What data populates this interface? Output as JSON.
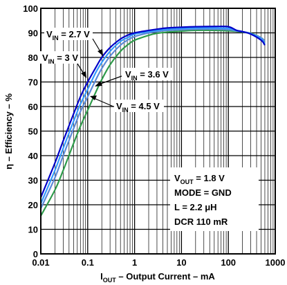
{
  "chart_data": {
    "type": "line",
    "x_scale": "log",
    "xlim": [
      0.01,
      1000
    ],
    "ylim": [
      0,
      100
    ],
    "x_ticks": [
      "0.01",
      "0.1",
      "1",
      "10",
      "100",
      "1000"
    ],
    "y_ticks": [
      "0",
      "10",
      "20",
      "30",
      "40",
      "50",
      "60",
      "70",
      "80",
      "90",
      "100"
    ],
    "xlabel": {
      "main": "I",
      "sub": "OUT",
      "rest": " – Output Current – mA"
    },
    "ylabel": "η – Efficiency – %",
    "grid": true,
    "series": [
      {
        "name": "V_IN = 2.7 V",
        "label_main": "V",
        "label_sub": "IN",
        "label_rest": " = 2.7 V",
        "color": "#0000c8",
        "x": [
          0.01,
          0.02,
          0.03,
          0.05,
          0.07,
          0.1,
          0.15,
          0.2,
          0.3,
          0.5,
          0.7,
          1,
          2,
          3,
          5,
          10,
          20,
          50,
          100,
          150,
          200,
          300,
          500,
          600
        ],
        "y": [
          23,
          37,
          46,
          57,
          64,
          70,
          76,
          80,
          84,
          87.5,
          89,
          90,
          91,
          91.5,
          92,
          92.3,
          92.5,
          92.6,
          92.5,
          91,
          90.5,
          89.5,
          87,
          85
        ]
      },
      {
        "name": "V_IN = 3 V",
        "label_main": "V",
        "label_sub": "IN",
        "label_rest": " = 3 V",
        "color": "#3399ff",
        "x": [
          0.01,
          0.02,
          0.03,
          0.05,
          0.07,
          0.1,
          0.15,
          0.2,
          0.3,
          0.5,
          0.7,
          1,
          2,
          3,
          5,
          10,
          20,
          50,
          100,
          150,
          200,
          300,
          500,
          600
        ],
        "y": [
          20.5,
          34,
          43,
          54,
          61,
          67,
          74,
          78,
          82.5,
          86.5,
          88,
          89.5,
          90.5,
          91,
          91.5,
          91.8,
          92,
          92,
          91.8,
          91,
          90.5,
          89.7,
          87.5,
          85.5
        ]
      },
      {
        "name": "V_IN = 3.6 V",
        "label_main": "V",
        "label_sub": "IN",
        "label_rest": " = 3.6 V",
        "color": "#5c8ad8",
        "x": [
          0.01,
          0.02,
          0.03,
          0.05,
          0.07,
          0.1,
          0.15,
          0.2,
          0.3,
          0.5,
          0.7,
          1,
          2,
          3,
          5,
          10,
          20,
          50,
          100,
          150,
          200,
          300,
          500,
          600
        ],
        "y": [
          18.5,
          31,
          40,
          51,
          58,
          64,
          71,
          75.5,
          80.5,
          85,
          87,
          88.5,
          90,
          90.5,
          91,
          91.3,
          91.5,
          91.5,
          91.3,
          90.8,
          90.4,
          89.7,
          88,
          86.5
        ]
      },
      {
        "name": "V_IN = 4.5 V",
        "label_main": "V",
        "label_sub": "IN",
        "label_rest": " = 4.5 V",
        "color": "#2e9b4a",
        "x": [
          0.01,
          0.02,
          0.03,
          0.05,
          0.07,
          0.1,
          0.15,
          0.2,
          0.3,
          0.5,
          0.7,
          1,
          2,
          3,
          5,
          10,
          20,
          50,
          100,
          150,
          200,
          300,
          500,
          600
        ],
        "y": [
          15.5,
          26,
          34,
          45,
          52,
          58.5,
          66,
          71,
          77,
          82.5,
          85,
          87,
          89,
          89.8,
          90.3,
          90.7,
          91,
          91,
          90.8,
          90.6,
          90.3,
          89.8,
          88,
          86.5
        ]
      }
    ],
    "annotations": [
      {
        "main": "V",
        "sub": "OUT",
        "rest": " = 1.8 V"
      },
      {
        "text": "MODE = GND"
      },
      {
        "text": "L = 2.2 μH"
      },
      {
        "text": "DCR 110 mR"
      }
    ]
  }
}
